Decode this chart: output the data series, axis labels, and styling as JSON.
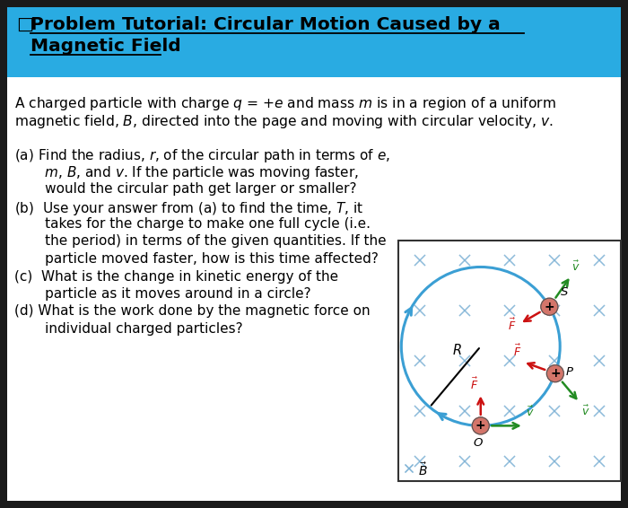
{
  "title_bg_color": "#29ABE2",
  "body_bg_color": "#FFFFFF",
  "outer_bg_color": "#1A1A1A",
  "title_square": "□",
  "title_line1": "Problem Tutorial: Circular Motion Caused by a",
  "title_line2": "  Magnetic Field",
  "intro_line1": "A charged particle with charge q = +e and mass m is in a region of a uniform",
  "intro_line2": "magnetic field, B, directed into the page and moving with circular velocity, v.",
  "q_lines": [
    "(a) Find the radius, r, of the circular path in terms of e,",
    "       m, B, and v. If the particle was moving faster,",
    "       would the circular path get larger or smaller?",
    "(b)  Use your answer from (a) to find the time, T, it",
    "       takes for the charge to make one full cycle (i.e.",
    "       the period) in terms of the given quantities. If the",
    "       particle moved faster, how is this time affected?",
    "(c)  What is the change in kinetic energy of the",
    "       particle as it moves around in a circle?",
    "(d) What is the work done by the magnetic force on",
    "       individual charged particles?"
  ],
  "circle_color": "#3B9FD4",
  "particle_color": "#D4756A",
  "force_color": "#CC1111",
  "velocity_color": "#228B22",
  "cross_color": "#7AB0D4",
  "diagram_bg_color": "#FFFFFF",
  "diagram_box_color": "#333333",
  "title_font_size": 14.5,
  "body_font_size": 11.2,
  "q_font_size": 11.0
}
